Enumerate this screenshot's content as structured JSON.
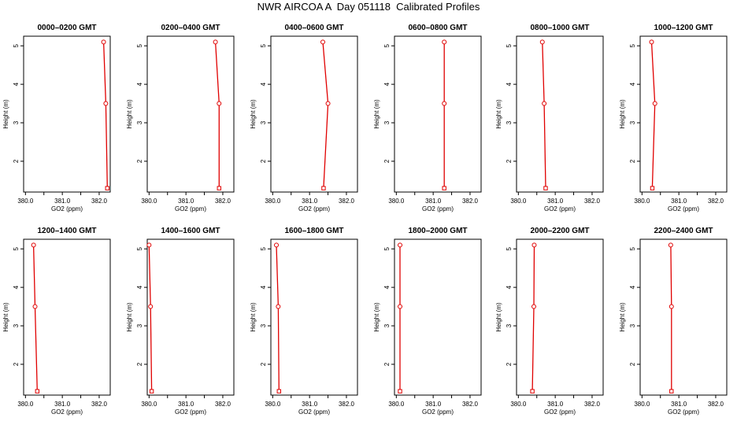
{
  "title": "NWR AIRCOA A  Day 051118  Calibrated Profiles",
  "chart_data": [
    {
      "type": "line",
      "title": "0000–0200 GMT",
      "xlabel": "GO2 (ppm)",
      "ylabel": "Height (m)",
      "xlim": [
        379.95,
        382.3
      ],
      "ylim": [
        1.2,
        5.25
      ],
      "xticks": [
        "380.0",
        "381.0",
        "382.0"
      ],
      "yticks": [
        "2",
        "3",
        "4",
        "5"
      ],
      "x": [
        382.22,
        382.18,
        382.12
      ],
      "y": [
        1.3,
        3.5,
        5.1
      ]
    },
    {
      "type": "line",
      "title": "0200–0400 GMT",
      "xlabel": "GO2 (ppm)",
      "ylabel": "Height (m)",
      "xlim": [
        379.95,
        382.3
      ],
      "ylim": [
        1.2,
        5.25
      ],
      "xticks": [
        "380.0",
        "381.0",
        "382.0"
      ],
      "yticks": [
        "2",
        "3",
        "4",
        "5"
      ],
      "x": [
        381.9,
        381.9,
        381.8
      ],
      "y": [
        1.3,
        3.5,
        5.1
      ]
    },
    {
      "type": "line",
      "title": "0400–0600 GMT",
      "xlabel": "GO2 (ppm)",
      "ylabel": "Height (m)",
      "xlim": [
        379.95,
        382.3
      ],
      "ylim": [
        1.2,
        5.25
      ],
      "xticks": [
        "380.0",
        "381.0",
        "382.0"
      ],
      "yticks": [
        "2",
        "3",
        "4",
        "5"
      ],
      "x": [
        381.38,
        381.5,
        381.36
      ],
      "y": [
        1.3,
        3.5,
        5.1
      ]
    },
    {
      "type": "line",
      "title": "0600–0800 GMT",
      "xlabel": "GO2 (ppm)",
      "ylabel": "Height (m)",
      "xlim": [
        379.95,
        382.3
      ],
      "ylim": [
        1.2,
        5.25
      ],
      "xticks": [
        "380.0",
        "381.0",
        "382.0"
      ],
      "yticks": [
        "2",
        "3",
        "4",
        "5"
      ],
      "x": [
        381.3,
        381.3,
        381.3
      ],
      "y": [
        1.3,
        3.5,
        5.1
      ]
    },
    {
      "type": "line",
      "title": "0800–1000 GMT",
      "xlabel": "GO2 (ppm)",
      "ylabel": "Height (m)",
      "xlim": [
        379.95,
        382.3
      ],
      "ylim": [
        1.2,
        5.25
      ],
      "xticks": [
        "380.0",
        "381.0",
        "382.0"
      ],
      "yticks": [
        "2",
        "3",
        "4",
        "5"
      ],
      "x": [
        380.74,
        380.7,
        380.65
      ],
      "y": [
        1.3,
        3.5,
        5.1
      ]
    },
    {
      "type": "line",
      "title": "1000–1200 GMT",
      "xlabel": "GO2 (ppm)",
      "ylabel": "Height (m)",
      "xlim": [
        379.95,
        382.3
      ],
      "ylim": [
        1.2,
        5.25
      ],
      "xticks": [
        "380.0",
        "381.0",
        "382.0"
      ],
      "yticks": [
        "2",
        "3",
        "4",
        "5"
      ],
      "x": [
        380.28,
        380.35,
        380.26
      ],
      "y": [
        1.3,
        3.5,
        5.1
      ]
    },
    {
      "type": "line",
      "title": "1200–1400 GMT",
      "xlabel": "GO2 (ppm)",
      "ylabel": "Height (m)",
      "xlim": [
        379.95,
        382.3
      ],
      "ylim": [
        1.2,
        5.25
      ],
      "xticks": [
        "380.0",
        "381.0",
        "382.0"
      ],
      "yticks": [
        "2",
        "3",
        "4",
        "5"
      ],
      "x": [
        380.32,
        380.26,
        380.22
      ],
      "y": [
        1.3,
        3.5,
        5.1
      ]
    },
    {
      "type": "line",
      "title": "1400–1600 GMT",
      "xlabel": "GO2 (ppm)",
      "ylabel": "Height (m)",
      "xlim": [
        379.95,
        382.3
      ],
      "ylim": [
        1.2,
        5.25
      ],
      "xticks": [
        "380.0",
        "381.0",
        "382.0"
      ],
      "yticks": [
        "2",
        "3",
        "4",
        "5"
      ],
      "x": [
        380.07,
        380.04,
        380.0
      ],
      "y": [
        1.3,
        3.5,
        5.1
      ]
    },
    {
      "type": "line",
      "title": "1600–1800 GMT",
      "xlabel": "GO2 (ppm)",
      "ylabel": "Height (m)",
      "xlim": [
        379.95,
        382.3
      ],
      "ylim": [
        1.2,
        5.25
      ],
      "xticks": [
        "380.0",
        "381.0",
        "382.0"
      ],
      "yticks": [
        "2",
        "3",
        "4",
        "5"
      ],
      "x": [
        380.17,
        380.15,
        380.1
      ],
      "y": [
        1.3,
        3.5,
        5.1
      ]
    },
    {
      "type": "line",
      "title": "1800–2000 GMT",
      "xlabel": "GO2 (ppm)",
      "ylabel": "Height (m)",
      "xlim": [
        379.95,
        382.3
      ],
      "ylim": [
        1.2,
        5.25
      ],
      "xticks": [
        "380.0",
        "381.0",
        "382.0"
      ],
      "yticks": [
        "2",
        "3",
        "4",
        "5"
      ],
      "x": [
        380.1,
        380.1,
        380.1
      ],
      "y": [
        1.3,
        3.5,
        5.1
      ]
    },
    {
      "type": "line",
      "title": "2000–2200 GMT",
      "xlabel": "GO2 (ppm)",
      "ylabel": "Height (m)",
      "xlim": [
        379.95,
        382.3
      ],
      "ylim": [
        1.2,
        5.25
      ],
      "xticks": [
        "380.0",
        "381.0",
        "382.0"
      ],
      "yticks": [
        "2",
        "3",
        "4",
        "5"
      ],
      "x": [
        380.38,
        380.42,
        380.43
      ],
      "y": [
        1.3,
        3.5,
        5.1
      ]
    },
    {
      "type": "line",
      "title": "2200–2400 GMT",
      "xlabel": "GO2 (ppm)",
      "ylabel": "Height (m)",
      "xlim": [
        379.95,
        382.3
      ],
      "ylim": [
        1.2,
        5.25
      ],
      "xticks": [
        "380.0",
        "381.0",
        "382.0"
      ],
      "yticks": [
        "2",
        "3",
        "4",
        "5"
      ],
      "x": [
        380.8,
        380.8,
        380.78
      ],
      "y": [
        1.3,
        3.5,
        5.1
      ]
    }
  ],
  "colors": {
    "series": "#e00000",
    "axis": "#000000"
  }
}
